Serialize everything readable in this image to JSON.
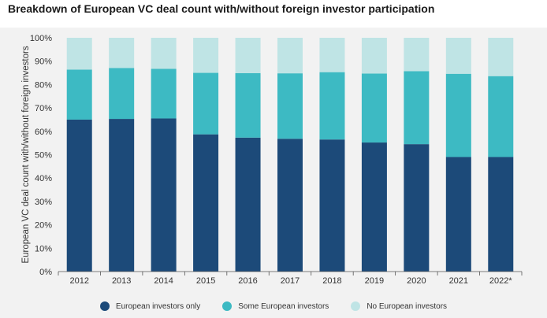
{
  "title": "Breakdown of European VC deal count with/without foreign investor participation",
  "chart_data": {
    "type": "bar",
    "stacked": true,
    "categories": [
      "2012",
      "2013",
      "2014",
      "2015",
      "2016",
      "2017",
      "2018",
      "2019",
      "2020",
      "2021",
      "2022*"
    ],
    "series": [
      {
        "name": "European investors only",
        "color": "#1c4a79",
        "values": [
          65,
          65.3,
          65.5,
          58.7,
          57.3,
          56.8,
          56.5,
          55.2,
          54.5,
          49,
          49
        ]
      },
      {
        "name": "Some European investors",
        "color": "#3dbac3",
        "values": [
          21.4,
          21.8,
          21.2,
          26.3,
          27.6,
          28,
          28.8,
          29.5,
          31.2,
          35.6,
          34.6
        ]
      },
      {
        "name": "No European investors",
        "color": "#bfe4e5",
        "values": [
          13.6,
          12.9,
          13.3,
          15,
          15.1,
          15.2,
          14.7,
          15.3,
          14.3,
          15.4,
          16.4
        ]
      }
    ],
    "yticks": [
      "0%",
      "10%",
      "20%",
      "30%",
      "40%",
      "50%",
      "60%",
      "70%",
      "80%",
      "90%",
      "100%"
    ],
    "ylabel": "European VC deal count with/without foreign investors",
    "xlabel": "",
    "ylim": [
      0,
      100
    ],
    "grid": false,
    "legend_position": "bottom"
  },
  "legend": [
    {
      "label": "European investors only",
      "color": "#1c4a79"
    },
    {
      "label": "Some European investors",
      "color": "#3dbac3"
    },
    {
      "label": "No European investors",
      "color": "#bfe4e5"
    }
  ]
}
